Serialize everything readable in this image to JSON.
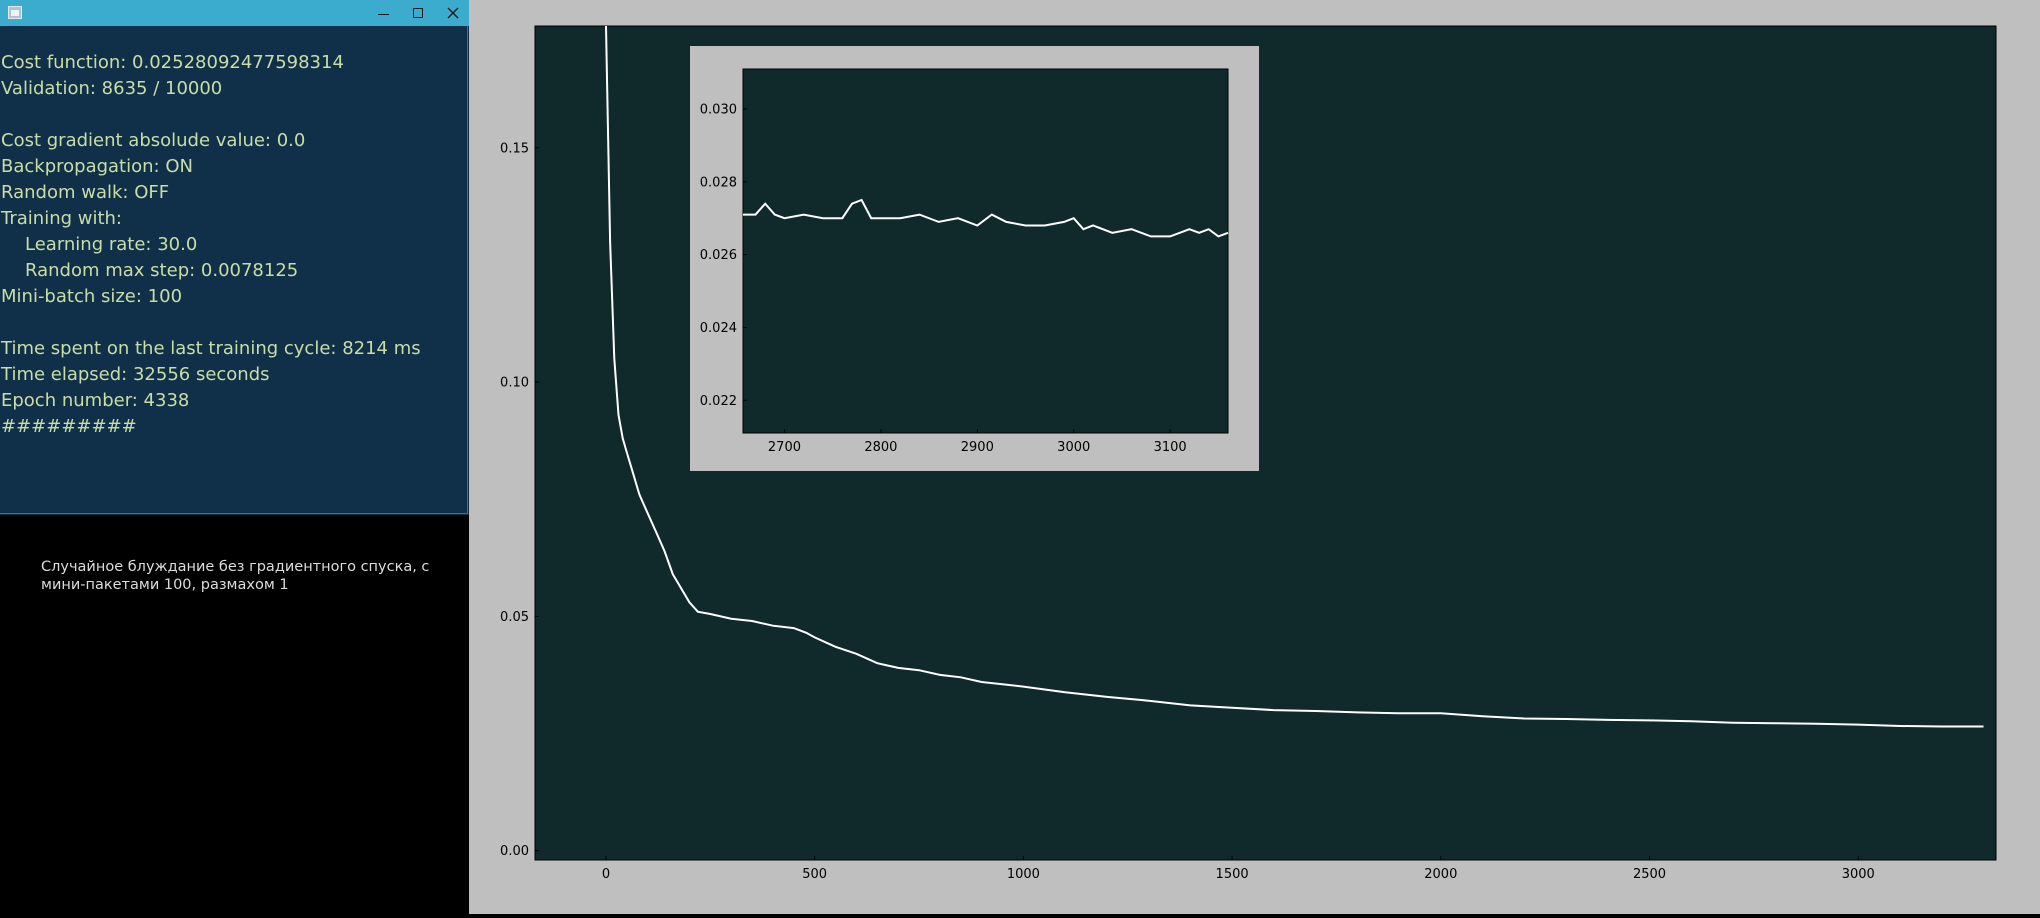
{
  "window": {
    "icon": "java-app-icon",
    "controls": [
      "minimize-icon",
      "maximize-icon",
      "close-icon"
    ]
  },
  "info": {
    "cost_function": "Cost function: 0.02528092477598314",
    "validation": "Validation: 8635 / 10000",
    "cost_gradient": "Cost gradient absolude value: 0.0",
    "backpropagation": "Backpropagation: ON",
    "random_walk": "Random walk: OFF",
    "training_with": "Training with:",
    "learning_rate": "Learning rate: 30.0",
    "random_max_step": "Random max step: 0.0078125",
    "mini_batch": "Mini-batch size: 100",
    "time_last_cycle": "Time spent on the last training cycle: 8214 ms",
    "time_elapsed": "Time elapsed: 32556 seconds",
    "epoch": "Epoch number: 4338",
    "progress_marks": "#########"
  },
  "caption": {
    "line1": "Случайное блуждание без градиентного спуска, с",
    "line2": "мини-пакетами 100, размахом 1"
  },
  "colors": {
    "plot_background": "#102a2c",
    "line": "#ffffff",
    "info_text": "#c9dda6",
    "info_background": "#10304a",
    "title_bar": "#3bacce"
  },
  "chart_data": [
    {
      "type": "line",
      "x_ticks": [
        "0",
        "500",
        "1000",
        "1500",
        "2000",
        "2500",
        "3000"
      ],
      "y_ticks": [
        "0.00",
        "0.05",
        "0.10",
        "0.15"
      ],
      "xlim": [
        -170,
        3330
      ],
      "ylim": [
        -0.002,
        0.176
      ],
      "grid": false,
      "series": [
        {
          "x": [
            0,
            10,
            20,
            30,
            40,
            50,
            60,
            70,
            80,
            90,
            100,
            120,
            140,
            160,
            180,
            200,
            220,
            250,
            300,
            350,
            400,
            450,
            480,
            500,
            550,
            600,
            650,
            700,
            750,
            800,
            850,
            900,
            950,
            1000,
            1100,
            1200,
            1300,
            1400,
            1500,
            1600,
            1700,
            1800,
            1900,
            2000,
            2100,
            2200,
            2300,
            2400,
            2500,
            2600,
            2700,
            2800,
            2900,
            3000,
            3100,
            3200,
            3300
          ],
          "y": [
            0.178,
            0.13,
            0.105,
            0.093,
            0.088,
            0.085,
            0.082,
            0.079,
            0.076,
            0.074,
            0.072,
            0.068,
            0.064,
            0.059,
            0.056,
            0.053,
            0.051,
            0.0505,
            0.0495,
            0.049,
            0.048,
            0.0475,
            0.0465,
            0.0455,
            0.0435,
            0.042,
            0.04,
            0.039,
            0.0385,
            0.0375,
            0.037,
            0.036,
            0.0355,
            0.035,
            0.0338,
            0.0328,
            0.032,
            0.031,
            0.0305,
            0.03,
            0.0298,
            0.0295,
            0.0293,
            0.0293,
            0.0287,
            0.0282,
            0.0281,
            0.0279,
            0.0278,
            0.0276,
            0.0273,
            0.0272,
            0.0271,
            0.0269,
            0.0266,
            0.0265,
            0.0265
          ]
        }
      ]
    },
    {
      "type": "line",
      "x_ticks": [
        "2700",
        "2800",
        "2900",
        "3000",
        "3100"
      ],
      "y_ticks": [
        "0.022",
        "0.024",
        "0.026",
        "0.028",
        "0.030"
      ],
      "xlim": [
        2657,
        3160
      ],
      "ylim": [
        0.0211,
        0.0311
      ],
      "grid": false,
      "series": [
        {
          "x": [
            2657,
            2670,
            2680,
            2690,
            2700,
            2720,
            2740,
            2760,
            2770,
            2780,
            2790,
            2800,
            2820,
            2840,
            2860,
            2880,
            2900,
            2915,
            2930,
            2950,
            2970,
            2990,
            3000,
            3010,
            3020,
            3040,
            3060,
            3080,
            3100,
            3110,
            3120,
            3130,
            3140,
            3150,
            3160
          ],
          "y": [
            0.0271,
            0.0271,
            0.0274,
            0.0271,
            0.027,
            0.0271,
            0.027,
            0.027,
            0.0274,
            0.0275,
            0.027,
            0.027,
            0.027,
            0.0271,
            0.0269,
            0.027,
            0.0268,
            0.0271,
            0.0269,
            0.0268,
            0.0268,
            0.0269,
            0.027,
            0.0267,
            0.0268,
            0.0266,
            0.0267,
            0.0265,
            0.0265,
            0.0266,
            0.0267,
            0.0266,
            0.0267,
            0.0265,
            0.0266
          ]
        }
      ]
    }
  ]
}
